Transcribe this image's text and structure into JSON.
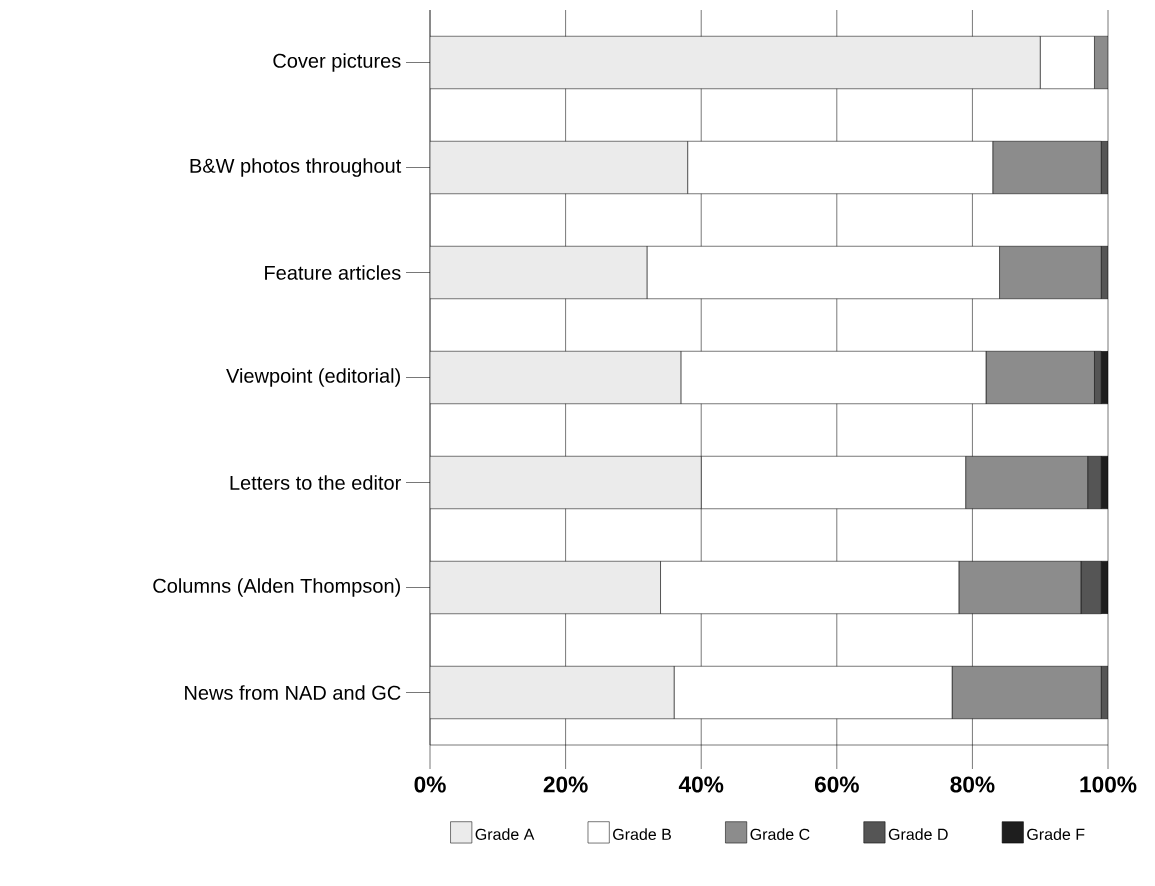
{
  "chart_data": {
    "type": "bar",
    "orientation": "horizontal",
    "stacked": true,
    "categories": [
      "Cover pictures",
      "B&W photos throughout",
      "Feature articles",
      "Viewpoint (editorial)",
      "Letters to the editor",
      "Columns (Alden Thompson)",
      "News from NAD and GC"
    ],
    "series": [
      {
        "name": "Grade A",
        "color": "#ebebeb",
        "values": [
          90,
          38,
          32,
          37,
          40,
          34,
          36
        ]
      },
      {
        "name": "Grade B",
        "color": "#ffffff",
        "values": [
          8,
          45,
          52,
          45,
          39,
          44,
          41
        ]
      },
      {
        "name": "Grade C",
        "color": "#8c8c8c",
        "values": [
          2,
          16,
          15,
          16,
          18,
          18,
          22
        ]
      },
      {
        "name": "Grade D",
        "color": "#555555",
        "values": [
          0,
          1,
          1,
          1,
          2,
          3,
          1
        ]
      },
      {
        "name": "Grade F",
        "color": "#1e1e1e",
        "values": [
          0,
          0,
          0,
          1,
          1,
          1,
          0
        ]
      }
    ],
    "xlim": [
      0,
      100
    ],
    "xticks": [
      {
        "value": 0,
        "label": "0%"
      },
      {
        "value": 20,
        "label": "20%"
      },
      {
        "value": 40,
        "label": "40%"
      },
      {
        "value": 60,
        "label": "60%"
      },
      {
        "value": 80,
        "label": "80%"
      },
      {
        "value": 100,
        "label": "100%"
      }
    ],
    "grid": "x",
    "legend": "bottom"
  }
}
